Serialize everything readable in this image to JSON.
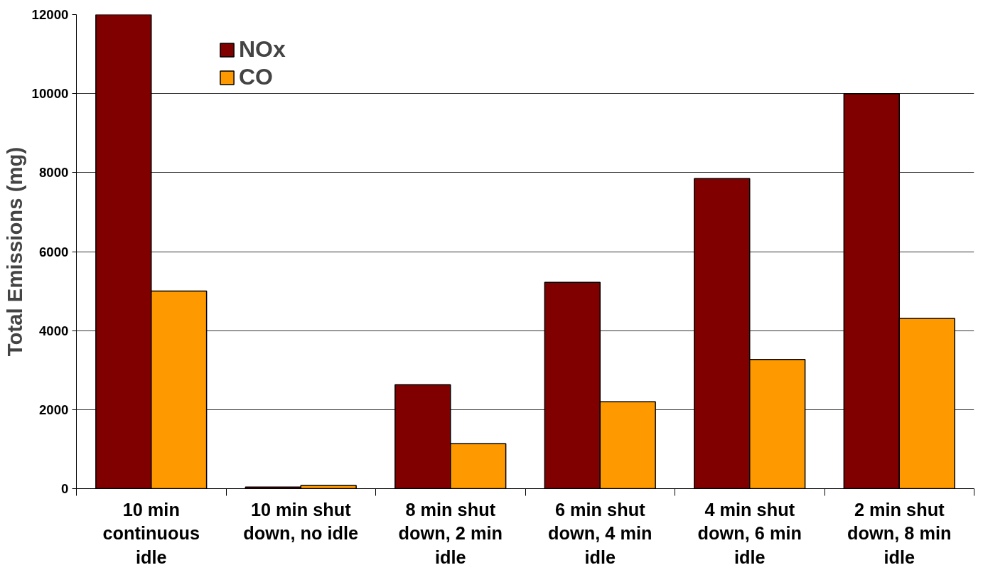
{
  "chart_data": {
    "type": "bar",
    "ylabel": "Total Emissions (mg)",
    "categories": [
      "10 min continuous idle",
      "10 min shut down, no idle",
      "8 min shut down, 2 min idle",
      "6 min shut down, 4 min idle",
      "4 min shut down, 6 min idle",
      "2 min shut down, 8 min idle"
    ],
    "series": [
      {
        "name": "NOx",
        "color": "#800000",
        "values": [
          12000,
          40,
          2630,
          5220,
          7850,
          10000
        ]
      },
      {
        "name": "CO",
        "color": "#ff9900",
        "values": [
          5000,
          80,
          1140,
          2200,
          3270,
          4310
        ]
      }
    ],
    "ylim": [
      0,
      12000
    ],
    "yticks": [
      0,
      2000,
      4000,
      6000,
      8000,
      10000,
      12000
    ],
    "grid": "y",
    "legend": "top left"
  }
}
